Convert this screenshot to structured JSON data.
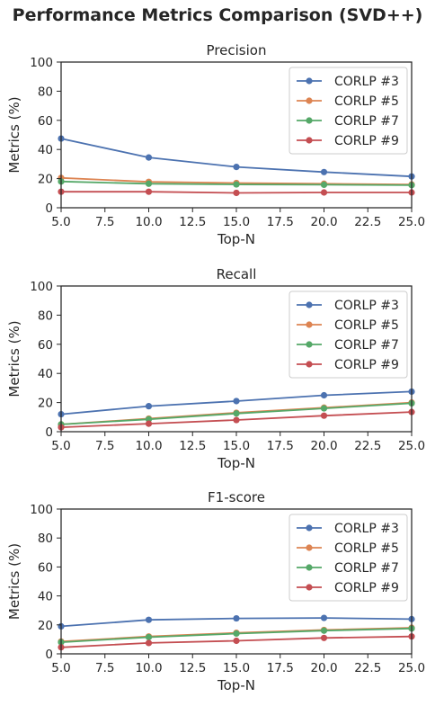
{
  "suptitle": "Performance Metrics Comparison (SVD++)",
  "colors": [
    "#4c72b0",
    "#dd8452",
    "#55a868",
    "#c44e52"
  ],
  "chart_data": [
    {
      "type": "line",
      "title": "Precision",
      "xlabel": "Top-N",
      "ylabel": "Metrics (%)",
      "xlim": [
        5,
        25
      ],
      "ylim": [
        0,
        100
      ],
      "xticks": [
        "5.0",
        "7.5",
        "10.0",
        "12.5",
        "15.0",
        "17.5",
        "20.0",
        "22.5",
        "25.0"
      ],
      "yticks": [
        "0",
        "20",
        "40",
        "60",
        "80",
        "100"
      ],
      "legend": "top-right",
      "x": [
        5,
        10,
        15,
        20,
        25
      ],
      "series": [
        {
          "name": "CORLP #3",
          "values": [
            47.5,
            34.5,
            28,
            24.5,
            21.5
          ]
        },
        {
          "name": "CORLP #5",
          "values": [
            20.5,
            17.8,
            17,
            16.5,
            16
          ]
        },
        {
          "name": "CORLP #7",
          "values": [
            18,
            16.5,
            16,
            15.8,
            15.5
          ]
        },
        {
          "name": "CORLP #9",
          "values": [
            11,
            11,
            10.2,
            10.5,
            10.5
          ]
        }
      ]
    },
    {
      "type": "line",
      "title": "Recall",
      "xlabel": "Top-N",
      "ylabel": "Metrics (%)",
      "xlim": [
        5,
        25
      ],
      "ylim": [
        0,
        100
      ],
      "xticks": [
        "5.0",
        "7.5",
        "10.0",
        "12.5",
        "15.0",
        "17.5",
        "20.0",
        "22.5",
        "25.0"
      ],
      "yticks": [
        "0",
        "20",
        "40",
        "60",
        "80",
        "100"
      ],
      "legend": "top-right",
      "x": [
        5,
        10,
        15,
        20,
        25
      ],
      "series": [
        {
          "name": "CORLP #3",
          "values": [
            12,
            17.5,
            21,
            25,
            27.5
          ]
        },
        {
          "name": "CORLP #5",
          "values": [
            5,
            9,
            13,
            16.5,
            20
          ]
        },
        {
          "name": "CORLP #7",
          "values": [
            5,
            8.5,
            12.5,
            16,
            19.5
          ]
        },
        {
          "name": "CORLP #9",
          "values": [
            3,
            5.5,
            8,
            11,
            13.5
          ]
        }
      ]
    },
    {
      "type": "line",
      "title": "F1-score",
      "xlabel": "Top-N",
      "ylabel": "Metrics (%)",
      "xlim": [
        5,
        25
      ],
      "ylim": [
        0,
        100
      ],
      "xticks": [
        "5.0",
        "7.5",
        "10.0",
        "12.5",
        "15.0",
        "17.5",
        "20.0",
        "22.5",
        "25.0"
      ],
      "yticks": [
        "0",
        "20",
        "40",
        "60",
        "80",
        "100"
      ],
      "legend": "top-right",
      "x": [
        5,
        10,
        15,
        20,
        25
      ],
      "series": [
        {
          "name": "CORLP #3",
          "values": [
            19,
            23.5,
            24.5,
            24.8,
            24
          ]
        },
        {
          "name": "CORLP #5",
          "values": [
            8.5,
            12,
            14.5,
            16.5,
            18
          ]
        },
        {
          "name": "CORLP #7",
          "values": [
            8,
            11.5,
            14,
            16,
            17.5
          ]
        },
        {
          "name": "CORLP #9",
          "values": [
            4.5,
            7.5,
            9,
            11,
            12
          ]
        }
      ]
    }
  ]
}
